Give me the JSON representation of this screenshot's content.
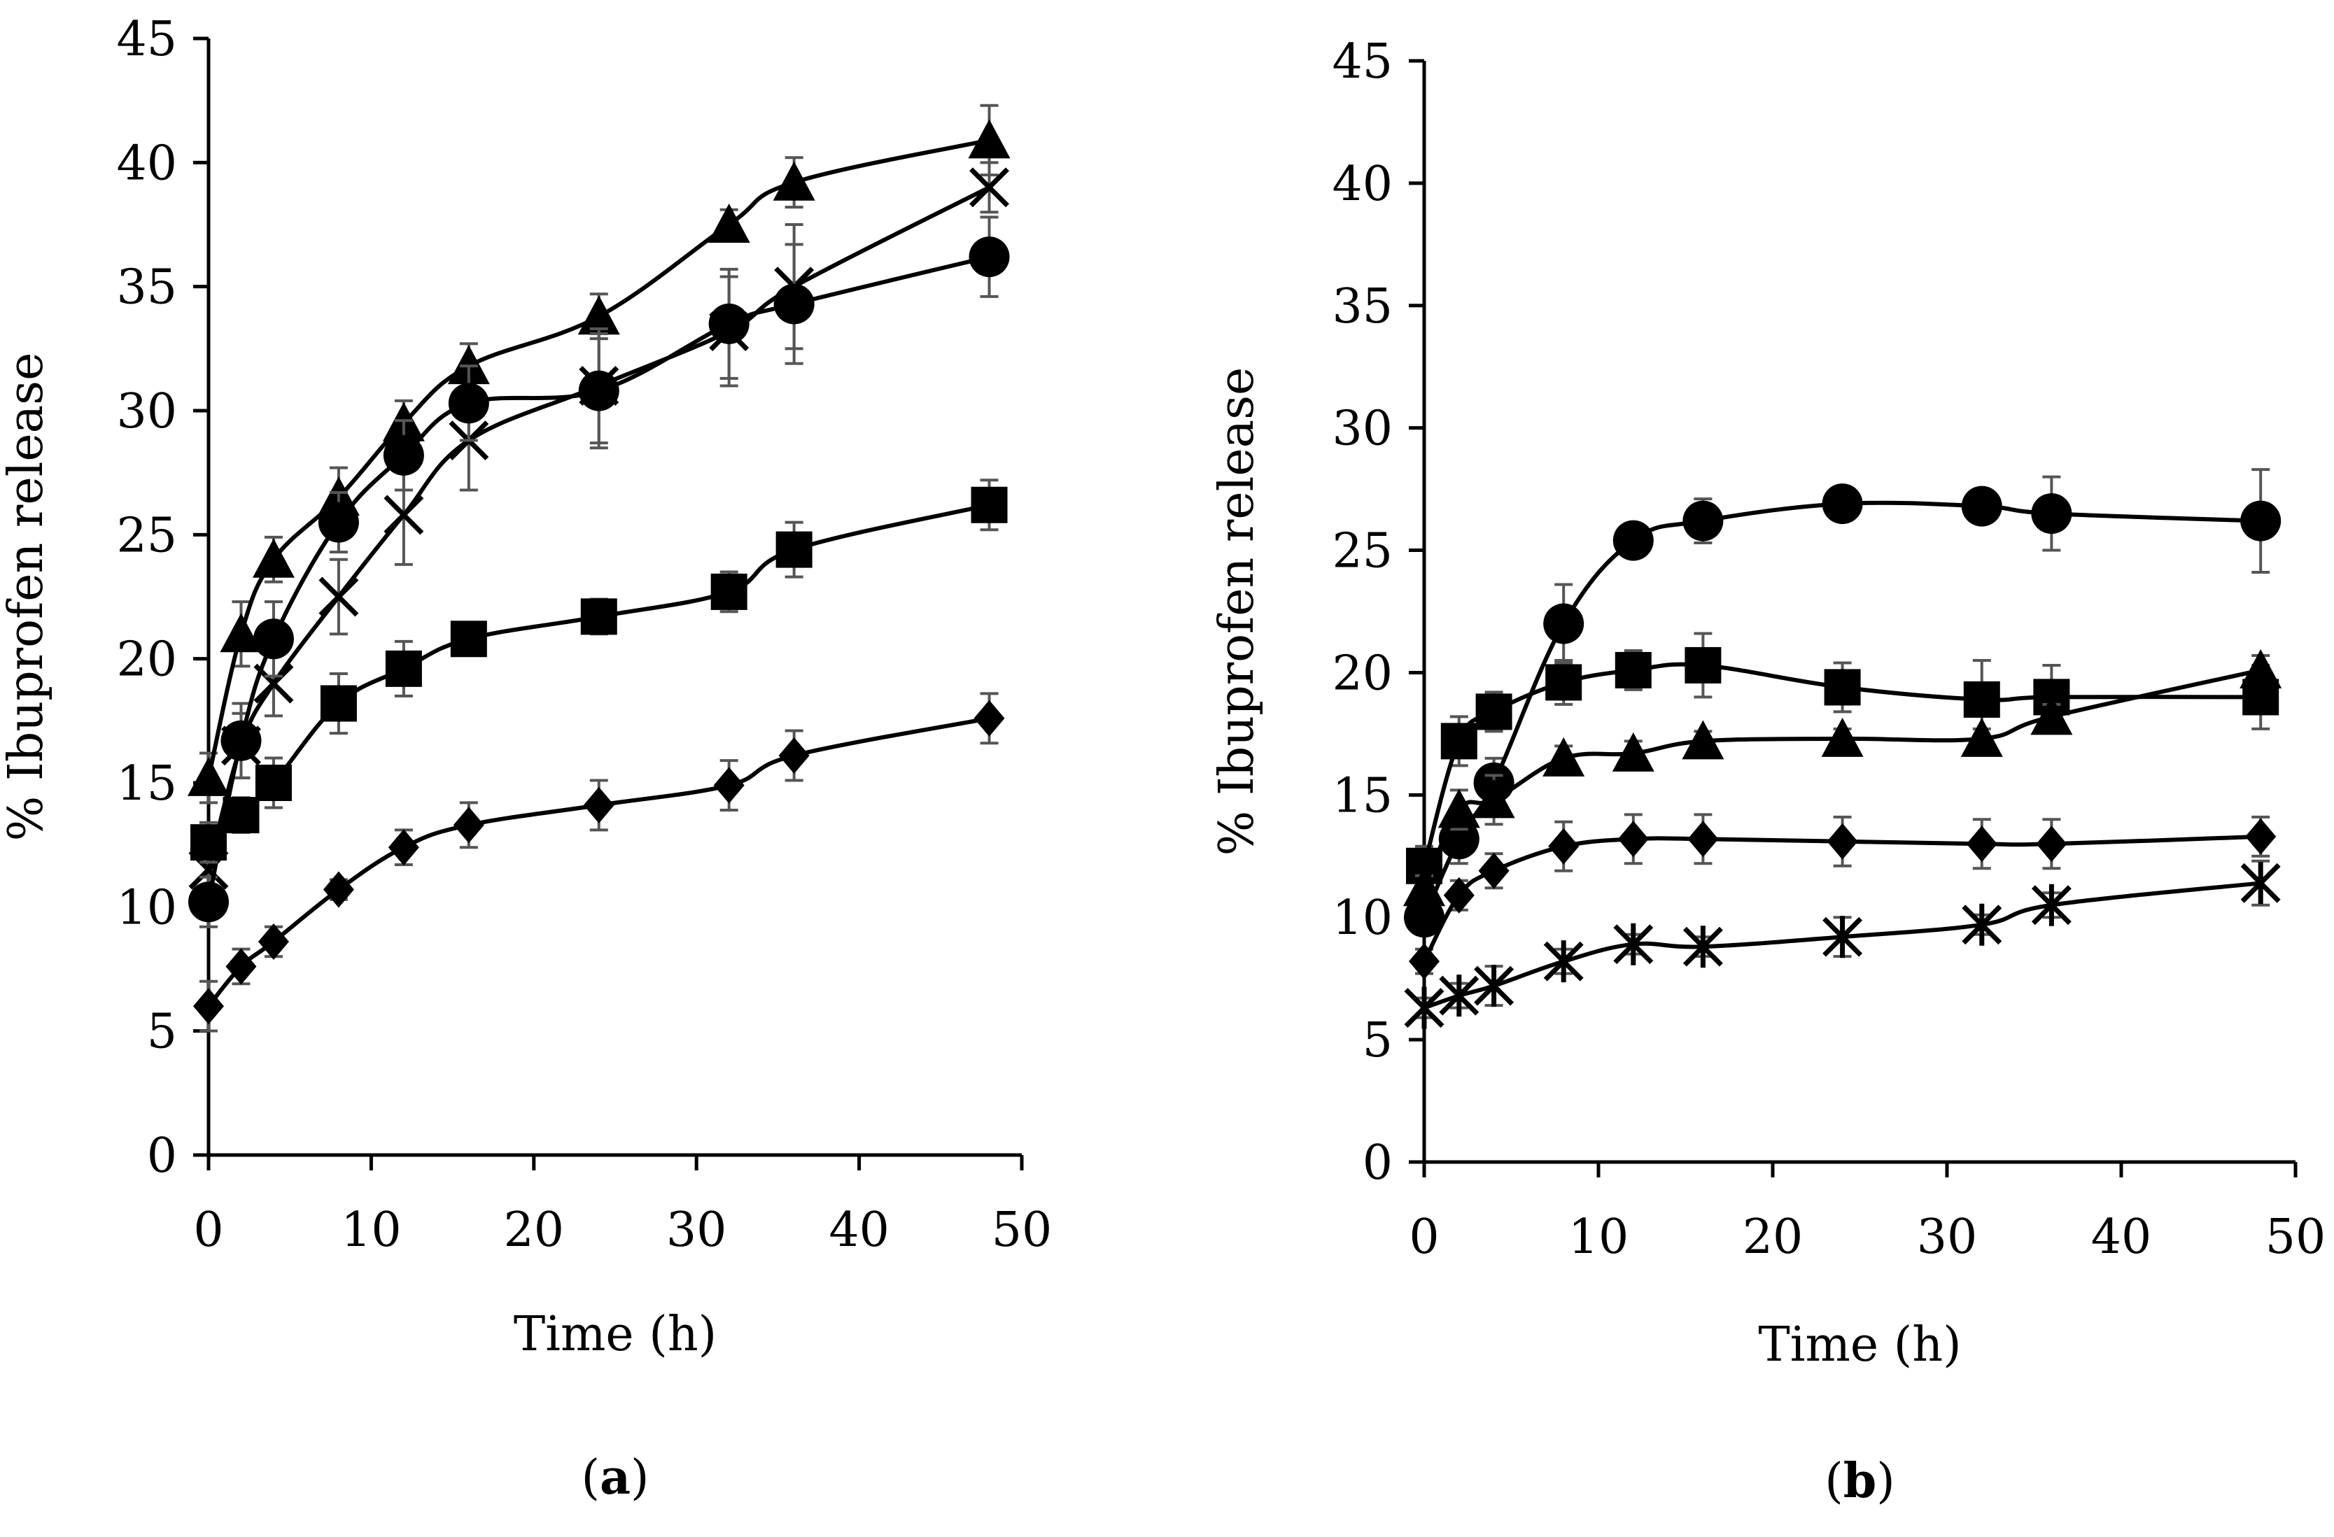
{
  "chart_data": [
    {
      "type": "line",
      "panel_label": "(a)",
      "panel_letter": "a",
      "xlabel": "Time (h)",
      "ylabel": "% Ibuprofen release",
      "xlim": [
        0,
        50
      ],
      "ylim": [
        0,
        45
      ],
      "xticks": [
        0,
        10,
        20,
        30,
        40,
        50
      ],
      "yticks": [
        0,
        5,
        10,
        15,
        20,
        25,
        30,
        35,
        40,
        45
      ],
      "grid": false,
      "x": [
        0,
        2,
        4,
        8,
        12,
        16,
        24,
        32,
        36,
        48
      ],
      "series": [
        {
          "marker": "triangle",
          "values": [
            15.2,
            21.0,
            24.0,
            26.5,
            29.5,
            31.8,
            33.8,
            37.5,
            39.2,
            40.9
          ],
          "errors": [
            1.0,
            1.3,
            0.9,
            1.2,
            0.9,
            0.9,
            0.9,
            0.6,
            1.0,
            1.4
          ]
        },
        {
          "marker": "cross",
          "values": [
            11.5,
            16.5,
            19.0,
            22.5,
            25.8,
            28.8,
            31.0,
            33.2,
            35.0,
            39.0
          ],
          "errors": [
            1.2,
            1.3,
            1.3,
            1.5,
            2.0,
            2.0,
            2.3,
            2.2,
            2.5,
            1.0
          ]
        },
        {
          "marker": "circle",
          "values": [
            10.2,
            16.7,
            20.8,
            25.5,
            28.2,
            30.3,
            30.8,
            33.5,
            34.3,
            36.2
          ],
          "errors": [
            1.0,
            1.5,
            1.5,
            1.2,
            1.4,
            1.5,
            2.3,
            2.2,
            2.4,
            1.6
          ]
        },
        {
          "marker": "square",
          "values": [
            12.6,
            13.7,
            15.0,
            18.2,
            19.6,
            20.8,
            21.7,
            22.7,
            24.4,
            26.2
          ],
          "errors": [
            0.8,
            0.7,
            1.0,
            1.2,
            1.1,
            0.6,
            0.7,
            0.8,
            1.1,
            1.0
          ]
        },
        {
          "marker": "diamond",
          "values": [
            6.0,
            7.6,
            8.6,
            10.7,
            12.4,
            13.3,
            14.1,
            14.9,
            16.1,
            17.6
          ],
          "errors": [
            1.0,
            0.7,
            0.6,
            0.4,
            0.7,
            0.9,
            1.0,
            1.0,
            1.0,
            1.0
          ]
        }
      ]
    },
    {
      "type": "line",
      "panel_label": "(b)",
      "panel_letter": "b",
      "xlabel": "Time (h)",
      "ylabel": "% Ibuprofen release",
      "xlim": [
        0,
        50
      ],
      "ylim": [
        0,
        45
      ],
      "xticks": [
        0,
        10,
        20,
        30,
        40,
        50
      ],
      "yticks": [
        0,
        5,
        10,
        15,
        20,
        25,
        30,
        35,
        40,
        45
      ],
      "grid": false,
      "x": [
        0,
        2,
        4,
        8,
        12,
        16,
        24,
        32,
        36,
        48
      ],
      "series": [
        {
          "marker": "circle",
          "values": [
            10.0,
            13.2,
            15.5,
            22.0,
            25.4,
            26.2,
            26.9,
            26.8,
            26.5,
            26.2
          ],
          "errors": [
            0.6,
            1.0,
            1.0,
            1.6,
            0.5,
            0.9,
            0.4,
            0.4,
            1.5,
            2.1
          ]
        },
        {
          "marker": "square",
          "values": [
            12.1,
            17.2,
            18.4,
            19.6,
            20.1,
            20.3,
            19.4,
            18.9,
            19.0,
            19.0
          ],
          "errors": [
            0.8,
            1.0,
            0.8,
            0.9,
            0.8,
            1.3,
            1.0,
            1.6,
            1.3,
            1.3
          ]
        },
        {
          "marker": "triangle",
          "values": [
            11.2,
            14.4,
            14.8,
            16.5,
            16.7,
            17.2,
            17.3,
            17.3,
            18.2,
            20.1
          ],
          "errors": [
            0.5,
            0.8,
            1.0,
            0.5,
            0.5,
            0.4,
            0.4,
            0.4,
            0.5,
            0.6
          ]
        },
        {
          "marker": "diamond",
          "values": [
            8.2,
            10.9,
            11.9,
            12.9,
            13.2,
            13.2,
            13.1,
            13.0,
            13.0,
            13.3
          ],
          "errors": [
            0.5,
            0.6,
            0.7,
            1.0,
            1.0,
            1.0,
            1.0,
            1.0,
            1.0,
            0.8
          ]
        },
        {
          "marker": "asterisk",
          "values": [
            6.3,
            6.8,
            7.2,
            8.2,
            8.9,
            8.8,
            9.2,
            9.7,
            10.5,
            11.4
          ],
          "errors": [
            0.4,
            0.5,
            0.8,
            0.5,
            0.4,
            0.4,
            0.8,
            0.4,
            0.5,
            0.9
          ]
        }
      ]
    }
  ]
}
